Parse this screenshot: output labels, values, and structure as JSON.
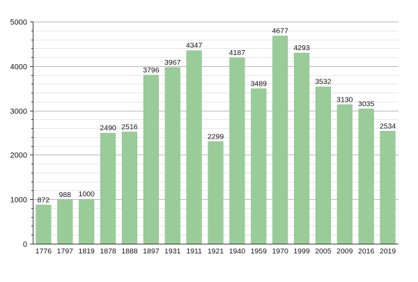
{
  "colors": {
    "bar_fill": "#99cc99",
    "bar_stroke": "#86b986",
    "grid_major": "#b8b8b8",
    "grid_minor": "#e6e6e6",
    "axis": "#333333",
    "text": "#111111",
    "background": "#ffffff"
  },
  "chart_data": {
    "type": "bar",
    "title": "",
    "xlabel": "",
    "ylabel": "",
    "categories": [
      "1776",
      "1797",
      "1819",
      "1878",
      "1888",
      "1897",
      "1931",
      "1911",
      "1921",
      "1940",
      "1959",
      "1970",
      "1999",
      "2005",
      "2009",
      "2016",
      "2019"
    ],
    "values": [
      872,
      988,
      1000,
      2490,
      2516,
      3796,
      3967,
      4347,
      2299,
      4187,
      3489,
      4677,
      4293,
      3532,
      3130,
      3035,
      2534
    ],
    "ylim": [
      0,
      5000
    ],
    "yticks": [
      0,
      1000,
      2000,
      3000,
      4000,
      5000
    ],
    "minor_step": 200,
    "grid": true,
    "data_labels": true,
    "legend": "none"
  }
}
